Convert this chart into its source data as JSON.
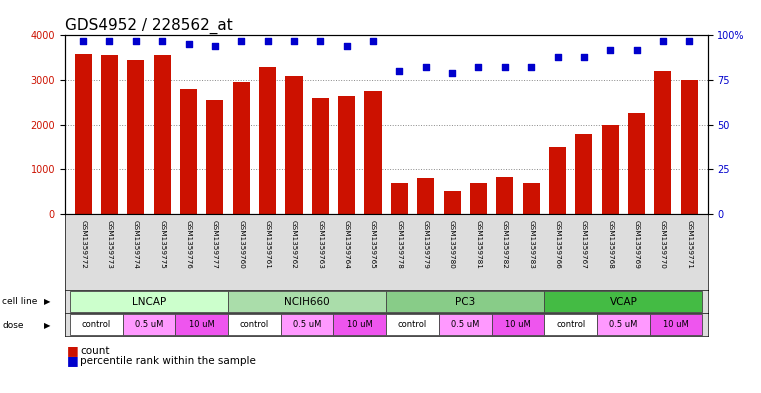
{
  "title": "GDS4952 / 228562_at",
  "samples": [
    "GSM1359772",
    "GSM1359773",
    "GSM1359774",
    "GSM1359775",
    "GSM1359776",
    "GSM1359777",
    "GSM1359760",
    "GSM1359761",
    "GSM1359762",
    "GSM1359763",
    "GSM1359764",
    "GSM1359765",
    "GSM1359778",
    "GSM1359779",
    "GSM1359780",
    "GSM1359781",
    "GSM1359782",
    "GSM1359783",
    "GSM1359766",
    "GSM1359767",
    "GSM1359768",
    "GSM1359769",
    "GSM1359770",
    "GSM1359771"
  ],
  "counts": [
    3580,
    3560,
    3450,
    3570,
    2800,
    2550,
    2950,
    3300,
    3080,
    2600,
    2650,
    2750,
    700,
    800,
    500,
    680,
    820,
    680,
    1500,
    1780,
    1980,
    2250,
    3200,
    3010
  ],
  "percentile_ranks": [
    97,
    97,
    97,
    97,
    95,
    94,
    97,
    97,
    97,
    97,
    94,
    97,
    80,
    82,
    79,
    82,
    82,
    82,
    88,
    88,
    92,
    92,
    97,
    97
  ],
  "cell_lines": [
    {
      "name": "LNCAP",
      "start": 0,
      "end": 6,
      "color": "#ccffcc"
    },
    {
      "name": "NCIH660",
      "start": 6,
      "end": 12,
      "color": "#aaddaa"
    },
    {
      "name": "PC3",
      "start": 12,
      "end": 18,
      "color": "#88cc88"
    },
    {
      "name": "VCAP",
      "start": 18,
      "end": 24,
      "color": "#44bb44"
    }
  ],
  "doses": [
    {
      "label": "control",
      "start": 0,
      "end": 2,
      "color": "#ffffff"
    },
    {
      "label": "0.5 uM",
      "start": 2,
      "end": 4,
      "color": "#ff99ff"
    },
    {
      "label": "10 uM",
      "start": 4,
      "end": 6,
      "color": "#ee55ee"
    },
    {
      "label": "control",
      "start": 6,
      "end": 8,
      "color": "#ffffff"
    },
    {
      "label": "0.5 uM",
      "start": 8,
      "end": 10,
      "color": "#ff99ff"
    },
    {
      "label": "10 uM",
      "start": 10,
      "end": 12,
      "color": "#ee55ee"
    },
    {
      "label": "control",
      "start": 12,
      "end": 14,
      "color": "#ffffff"
    },
    {
      "label": "0.5 uM",
      "start": 14,
      "end": 16,
      "color": "#ff99ff"
    },
    {
      "label": "10 uM",
      "start": 16,
      "end": 18,
      "color": "#ee55ee"
    },
    {
      "label": "control",
      "start": 18,
      "end": 20,
      "color": "#ffffff"
    },
    {
      "label": "0.5 uM",
      "start": 20,
      "end": 22,
      "color": "#ff99ff"
    },
    {
      "label": "10 uM",
      "start": 22,
      "end": 24,
      "color": "#ee55ee"
    }
  ],
  "bar_color": "#cc1100",
  "dot_color": "#0000cc",
  "ylim_left": [
    0,
    4000
  ],
  "ylim_right": [
    0,
    100
  ],
  "yticks_left": [
    0,
    1000,
    2000,
    3000,
    4000
  ],
  "yticks_right": [
    0,
    25,
    50,
    75,
    100
  ],
  "background_color": "#ffffff",
  "grid_color": "#888888",
  "title_fontsize": 11,
  "tick_fontsize": 7,
  "label_fontsize": 7
}
